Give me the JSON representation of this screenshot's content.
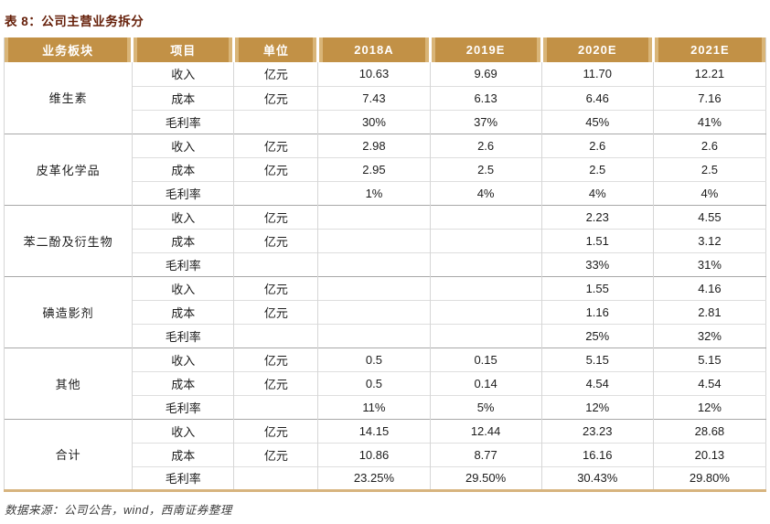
{
  "title": "表 8：公司主营业务拆分",
  "source": "数据来源：公司公告，wind，西南证券整理",
  "colors": {
    "header_bg": "#C29146",
    "header_accent": "#D9B578",
    "title_color": "#66200A",
    "source_color": "#3D3D3D",
    "table_bottom_border": "#D7B47E",
    "grid_light": "#DEDEDE",
    "grid_dark": "#A8A8A8",
    "grid_vertical": "#D6D6D6",
    "text_color": "#1C1C1C"
  },
  "table": {
    "columns": [
      "业务板块",
      "项目",
      "单位",
      "2018A",
      "2019E",
      "2020E",
      "2021E"
    ],
    "groups": [
      {
        "segment": "维生素",
        "rows": [
          {
            "item": "收入",
            "unit": "亿元",
            "values": [
              "10.63",
              "9.69",
              "11.70",
              "12.21"
            ]
          },
          {
            "item": "成本",
            "unit": "亿元",
            "values": [
              "7.43",
              "6.13",
              "6.46",
              "7.16"
            ]
          },
          {
            "item": "毛利率",
            "unit": "",
            "values": [
              "30%",
              "37%",
              "45%",
              "41%"
            ]
          }
        ]
      },
      {
        "segment": "皮革化学品",
        "rows": [
          {
            "item": "收入",
            "unit": "亿元",
            "values": [
              "2.98",
              "2.6",
              "2.6",
              "2.6"
            ]
          },
          {
            "item": "成本",
            "unit": "亿元",
            "values": [
              "2.95",
              "2.5",
              "2.5",
              "2.5"
            ]
          },
          {
            "item": "毛利率",
            "unit": "",
            "values": [
              "1%",
              "4%",
              "4%",
              "4%"
            ]
          }
        ]
      },
      {
        "segment": "苯二酚及衍生物",
        "rows": [
          {
            "item": "收入",
            "unit": "亿元",
            "values": [
              "",
              "",
              "2.23",
              "4.55"
            ]
          },
          {
            "item": "成本",
            "unit": "亿元",
            "values": [
              "",
              "",
              "1.51",
              "3.12"
            ]
          },
          {
            "item": "毛利率",
            "unit": "",
            "values": [
              "",
              "",
              "33%",
              "31%"
            ]
          }
        ]
      },
      {
        "segment": "碘造影剂",
        "rows": [
          {
            "item": "收入",
            "unit": "亿元",
            "values": [
              "",
              "",
              "1.55",
              "4.16"
            ]
          },
          {
            "item": "成本",
            "unit": "亿元",
            "values": [
              "",
              "",
              "1.16",
              "2.81"
            ]
          },
          {
            "item": "毛利率",
            "unit": "",
            "values": [
              "",
              "",
              "25%",
              "32%"
            ]
          }
        ]
      },
      {
        "segment": "其他",
        "rows": [
          {
            "item": "收入",
            "unit": "亿元",
            "values": [
              "0.5",
              "0.15",
              "5.15",
              "5.15"
            ]
          },
          {
            "item": "成本",
            "unit": "亿元",
            "values": [
              "0.5",
              "0.14",
              "4.54",
              "4.54"
            ]
          },
          {
            "item": "毛利率",
            "unit": "",
            "values": [
              "11%",
              "5%",
              "12%",
              "12%"
            ]
          }
        ]
      },
      {
        "segment": "合计",
        "rows": [
          {
            "item": "收入",
            "unit": "亿元",
            "values": [
              "14.15",
              "12.44",
              "23.23",
              "28.68"
            ]
          },
          {
            "item": "成本",
            "unit": "亿元",
            "values": [
              "10.86",
              "8.77",
              "16.16",
              "20.13"
            ]
          },
          {
            "item": "毛利率",
            "unit": "",
            "values": [
              "23.25%",
              "29.50%",
              "30.43%",
              "29.80%"
            ]
          }
        ]
      }
    ]
  }
}
